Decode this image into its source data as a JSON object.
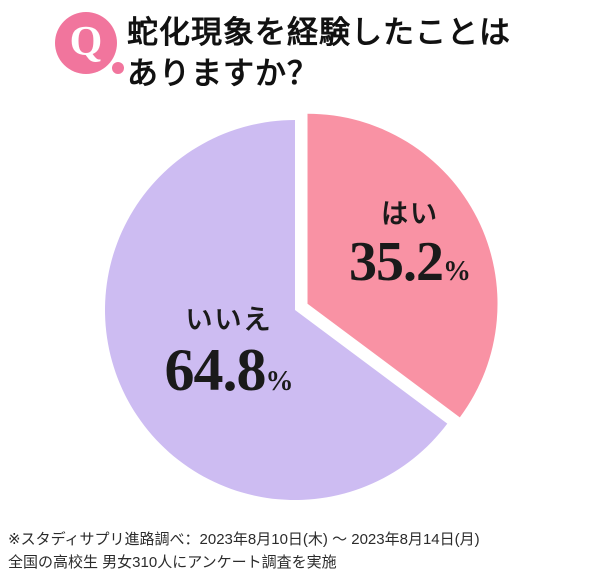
{
  "header": {
    "q_mark": "Q",
    "title_line1": "蛇化現象を経験したことは",
    "title_line2": "ありますか？"
  },
  "chart_data": {
    "type": "pie",
    "title": "蛇化現象を経験したことはありますか？",
    "start_angle_deg": 0,
    "direction": "clockwise",
    "legend": "none",
    "percent_sign": "%",
    "slices": [
      {
        "label": "はい",
        "value": 35.2,
        "color": "#f992a4",
        "explode": 14
      },
      {
        "label": "いいえ",
        "value": 64.8,
        "color": "#cdbcf2",
        "explode": 0
      }
    ]
  },
  "footnote": {
    "line1": "※スタディサプリ進路調べ：2023年8月10日(木) ～ 2023年8月14日(月)",
    "line2": "全国の高校生 男女310人にアンケート調査を実施"
  }
}
